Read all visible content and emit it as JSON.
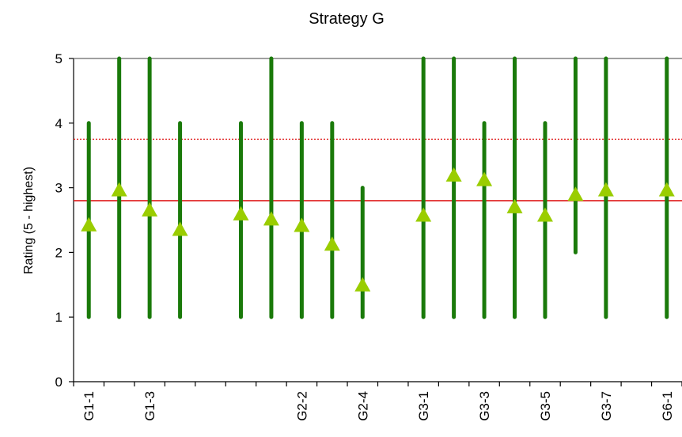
{
  "chart_data": {
    "type": "range-with-mean",
    "title": "Strategy G",
    "ylabel": "Rating (5 - highest)",
    "xlabel": "",
    "ylim": [
      0,
      5
    ],
    "yticks": [
      0,
      1,
      2,
      3,
      4,
      5
    ],
    "grid": false,
    "colors": {
      "range": "#1a7a0a",
      "mean_marker": "#9acd00",
      "solid_line": "#e02020",
      "dotted_line": "#e02020",
      "axis": "#000000",
      "top_line": "#808080"
    },
    "x_slots": [
      "G1-1",
      "",
      "G1-3",
      "",
      "",
      "",
      "",
      "G2-2",
      "",
      "G2-4",
      "",
      "G3-1",
      "",
      "G3-3",
      "",
      "G3-5",
      "",
      "G3-7",
      "",
      "G6-1"
    ],
    "series": [
      {
        "categories": [
          "G1-1",
          "",
          "G1-3",
          "",
          "",
          "",
          "G2-2",
          "",
          "G2-4",
          "G3-1",
          "",
          "G3-3",
          "",
          "G3-5",
          "",
          "G3-7",
          "G6-1"
        ],
        "slot_index": [
          0,
          1,
          2,
          3,
          5,
          6,
          7,
          8,
          9,
          11,
          12,
          13,
          14,
          15,
          16,
          17,
          19
        ],
        "low": [
          1,
          1,
          1,
          1,
          1,
          1,
          1,
          1,
          1,
          1,
          1,
          1,
          1,
          1,
          2,
          1,
          1
        ],
        "high": [
          4,
          5,
          5,
          4,
          4,
          5,
          4,
          4,
          3,
          5,
          5,
          4,
          5,
          4,
          5,
          5,
          5
        ],
        "mean": [
          2.43,
          2.97,
          2.66,
          2.36,
          2.6,
          2.52,
          2.42,
          2.13,
          1.5,
          2.58,
          3.2,
          3.13,
          2.71,
          2.58,
          2.9,
          2.97,
          2.97
        ]
      }
    ],
    "reference_lines": [
      {
        "style": "solid",
        "value": 2.8
      },
      {
        "style": "dotted",
        "value": 3.75
      }
    ]
  }
}
